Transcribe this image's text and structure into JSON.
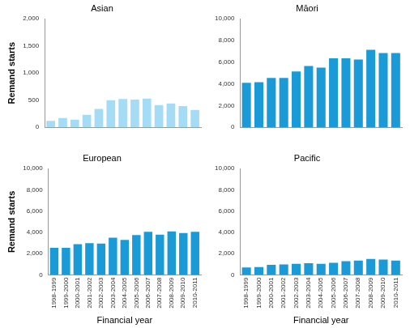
{
  "chart_data": [
    {
      "type": "bar",
      "title": "Asian",
      "categories": [
        "1998-1999",
        "1999-2000",
        "2000-2001",
        "2001-2002",
        "2002-2003",
        "2003-2004",
        "2004-2005",
        "2005-2006",
        "2006-2007",
        "2007-2008",
        "2008-2009",
        "2009-2010",
        "2010-2011"
      ],
      "values": [
        120,
        170,
        140,
        230,
        340,
        500,
        520,
        510,
        530,
        410,
        440,
        390,
        320
      ],
      "color": "#a5dcf5",
      "ylabel": "Remand starts",
      "ylim": [
        0,
        2000
      ],
      "yticks": [
        0,
        500,
        {
          "value": 1000,
          "label": "1,000"
        },
        {
          "value": 1500,
          "label": "1,500"
        },
        {
          "value": 2000,
          "label": "2,000"
        }
      ],
      "grid": false,
      "tick_labels": "y"
    },
    {
      "type": "bar",
      "title": "Māori",
      "categories": [
        "1998-1999",
        "1999-2000",
        "2000-2001",
        "2001-2002",
        "2002-2003",
        "2003-2004",
        "2004-2005",
        "2005-2006",
        "2006-2007",
        "2007-2008",
        "2008-2009",
        "2009-2010",
        "2010-2011"
      ],
      "values": [
        4100,
        4150,
        4550,
        4550,
        5150,
        5650,
        5500,
        6350,
        6350,
        6250,
        7150,
        6850,
        6850
      ],
      "color": "#1a9ad6",
      "ylim": [
        0,
        10000
      ],
      "yticks": [
        0,
        {
          "value": 2000,
          "label": "2,000"
        },
        {
          "value": 4000,
          "label": "4,000"
        },
        {
          "value": 6000,
          "label": "6,000"
        },
        {
          "value": 8000,
          "label": "8,000"
        },
        {
          "value": 10000,
          "label": "10,000"
        }
      ],
      "grid": false,
      "tick_labels": "y"
    },
    {
      "type": "bar",
      "title": "European",
      "categories": [
        "1998-1999",
        "1999-2000",
        "2000-2001",
        "2001-2002",
        "2002-2003",
        "2003-2004",
        "2004-2005",
        "2005-2006",
        "2006-2007",
        "2007-2008",
        "2008-2009",
        "2009-2010",
        "2010-2011"
      ],
      "values": [
        2550,
        2550,
        2900,
        3000,
        2950,
        3500,
        3300,
        3750,
        4050,
        3800,
        4100,
        3950,
        4050
      ],
      "color": "#1a9ad6",
      "xlabel": "Financial year",
      "ylabel": "Remand starts",
      "ylim": [
        0,
        10000
      ],
      "yticks": [
        0,
        {
          "value": 2000,
          "label": "2,000"
        },
        {
          "value": 4000,
          "label": "4,000"
        },
        {
          "value": 6000,
          "label": "6,000"
        },
        {
          "value": 8000,
          "label": "8,000"
        },
        {
          "value": 10000,
          "label": "10,000"
        }
      ],
      "grid": false
    },
    {
      "type": "bar",
      "title": "Pacific",
      "categories": [
        "1998-1999",
        "1999-2000",
        "2000-2001",
        "2001-2002",
        "2002-2003",
        "2003-2004",
        "2004-2005",
        "2005-2006",
        "2006-2007",
        "2007-2008",
        "2008-2009",
        "2009-2010",
        "2010-2011"
      ],
      "values": [
        700,
        750,
        950,
        1000,
        1050,
        1100,
        1050,
        1150,
        1300,
        1350,
        1500,
        1450,
        1350
      ],
      "color": "#1a9ad6",
      "xlabel": "Financial year",
      "ylim": [
        0,
        10000
      ],
      "yticks": [
        0,
        {
          "value": 2000,
          "label": "2,000"
        },
        {
          "value": 4000,
          "label": "4,000"
        },
        {
          "value": 6000,
          "label": "6,000"
        },
        {
          "value": 8000,
          "label": "8,000"
        },
        {
          "value": 10000,
          "label": "10,000"
        }
      ],
      "grid": false
    }
  ]
}
